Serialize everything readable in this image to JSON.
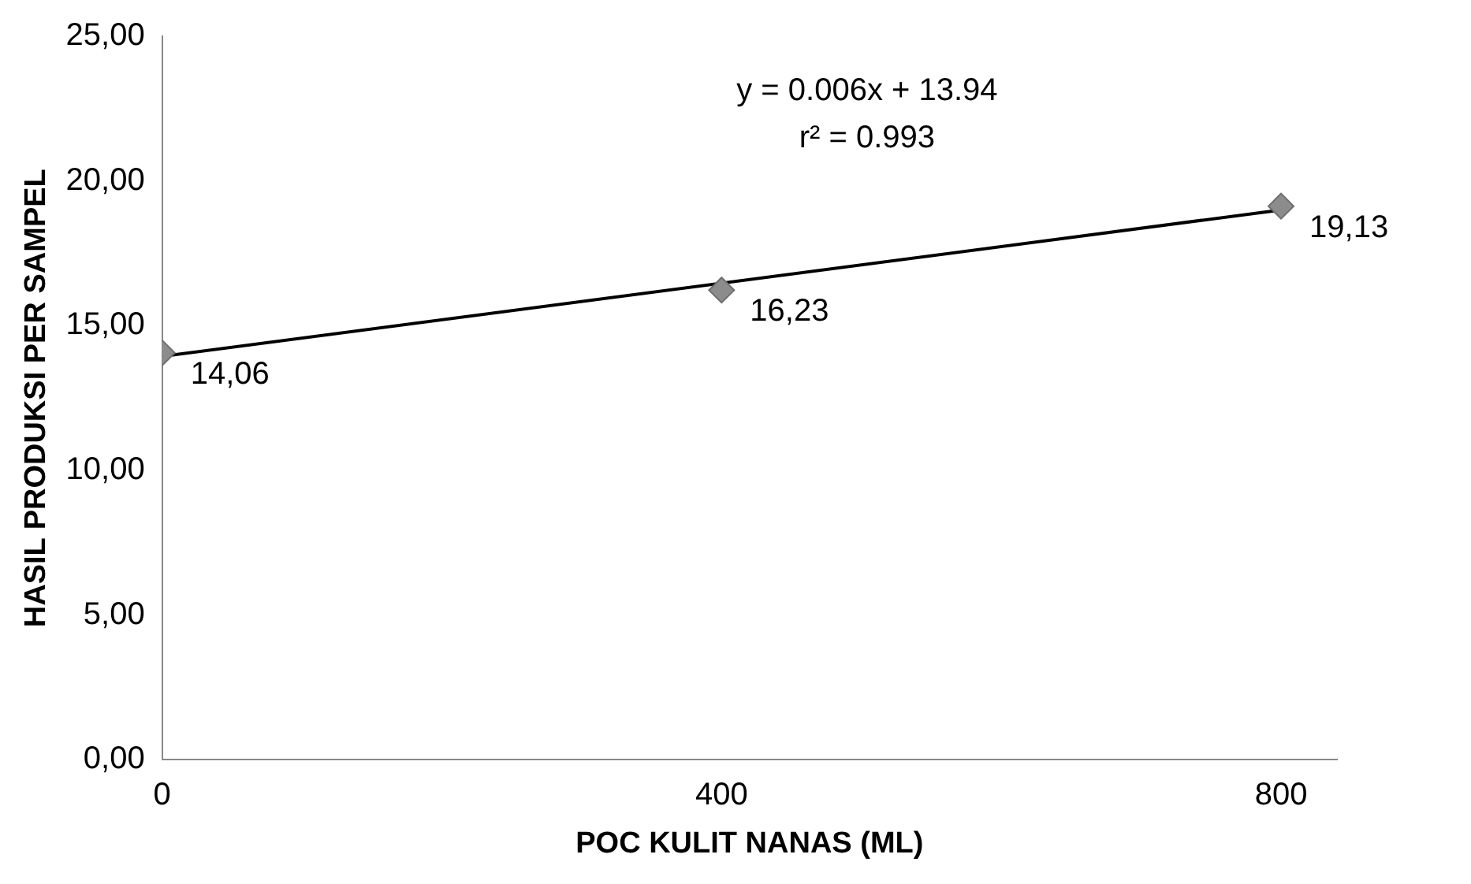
{
  "chart_data": {
    "type": "scatter",
    "xlabel": "POC KULIT NANAS (ML)",
    "ylabel": "HASIL PRODUKSI PER SAMPEL",
    "annotations": [
      "y = 0.006x + 13.94",
      "r² = 0.993"
    ],
    "series": [
      {
        "color": "#8c8c8c",
        "x": [
          0,
          400,
          800
        ],
        "values": [
          14.06,
          16.23,
          19.13
        ],
        "value_labels": [
          "14,06",
          "16,23",
          "19,13"
        ],
        "marker": "diamond"
      },
      {
        "type": "line",
        "color": "#000000",
        "x": [
          0,
          800
        ],
        "values": [
          13.94,
          19.0
        ],
        "marker": "none",
        "line_style": "solid"
      }
    ],
    "xlim": [
      0,
      840
    ],
    "xticks": [
      0,
      400,
      800
    ],
    "ylim": [
      0,
      25
    ],
    "yticks": [
      {
        "value": 0,
        "label": "0,00"
      },
      {
        "value": 5,
        "label": "5,00"
      },
      {
        "value": 10,
        "label": "10,00"
      },
      {
        "value": 15,
        "label": "15,00"
      },
      {
        "value": 20,
        "label": "20,00"
      },
      {
        "value": 25,
        "label": "25,00"
      }
    ],
    "grid": false,
    "legend": false
  }
}
